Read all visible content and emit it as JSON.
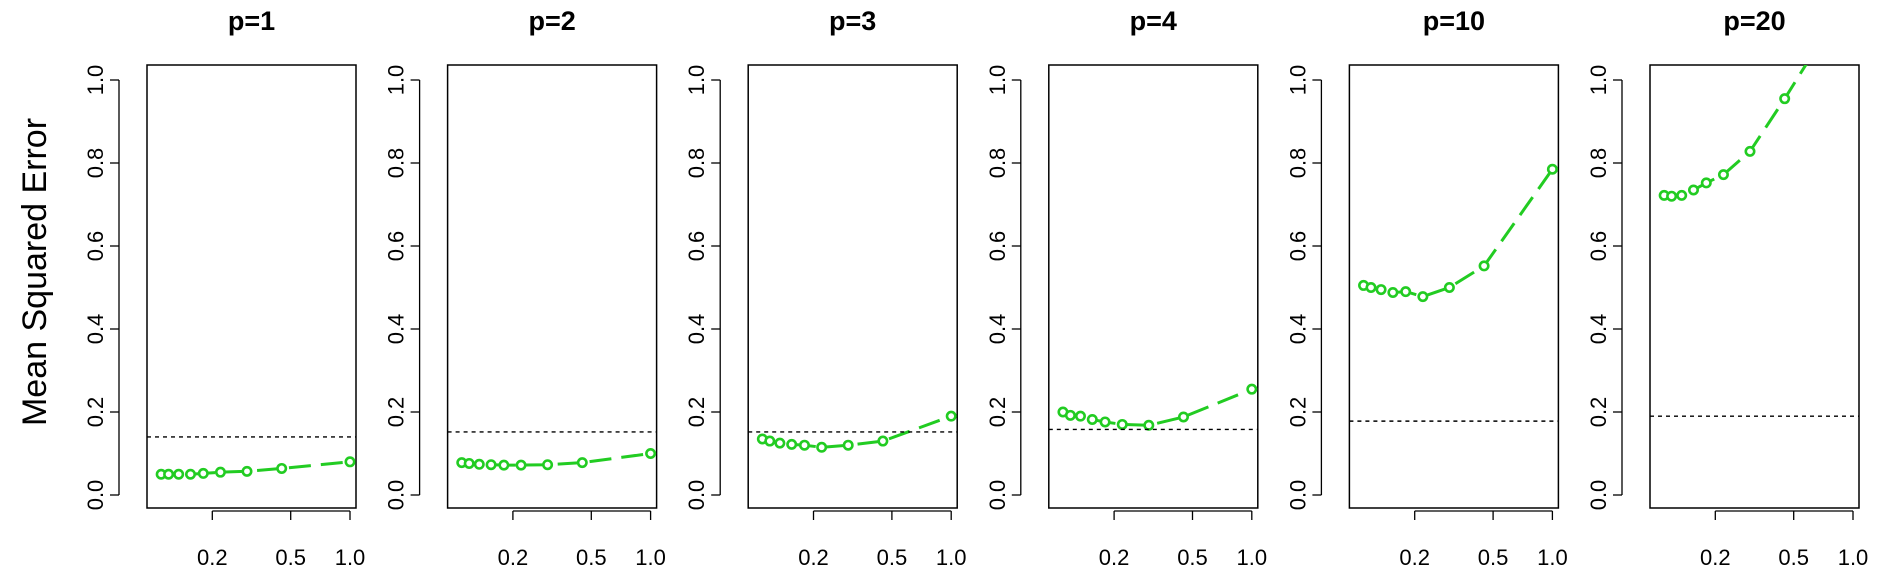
{
  "figure": {
    "ylabel": "Mean Squared Error"
  },
  "chart_data": [
    {
      "type": "line",
      "title": "p=1",
      "xscale": "log",
      "xlim": [
        0.1,
        1.0
      ],
      "ylim": [
        0.0,
        1.0
      ],
      "xticks": [
        0.2,
        0.5,
        1.0
      ],
      "xtick_labels": [
        "0.2",
        "0.5",
        "1.0"
      ],
      "yticks": [
        0.0,
        0.2,
        0.4,
        0.6,
        0.8,
        1.0
      ],
      "ytick_labels": [
        "0.0",
        "0.2",
        "0.4",
        "0.6",
        "0.8",
        "1.0"
      ],
      "series": [
        {
          "x": [
            0.11,
            0.12,
            0.135,
            0.155,
            0.18,
            0.22,
            0.3,
            0.45,
            1.0
          ],
          "y": [
            0.05,
            0.05,
            0.05,
            0.05,
            0.052,
            0.055,
            0.057,
            0.064,
            0.08
          ],
          "color": "#22cc22",
          "style": "points+dashed"
        },
        {
          "reference_y": 0.14,
          "color": "#000000",
          "style": "dotted"
        }
      ]
    },
    {
      "type": "line",
      "title": "p=2",
      "xscale": "log",
      "xlim": [
        0.1,
        1.0
      ],
      "ylim": [
        0.0,
        1.0
      ],
      "xticks": [
        0.2,
        0.5,
        1.0
      ],
      "xtick_labels": [
        "0.2",
        "0.5",
        "1.0"
      ],
      "yticks": [
        0.0,
        0.2,
        0.4,
        0.6,
        0.8,
        1.0
      ],
      "ytick_labels": [
        "0.0",
        "0.2",
        "0.4",
        "0.6",
        "0.8",
        "1.0"
      ],
      "series": [
        {
          "x": [
            0.11,
            0.12,
            0.135,
            0.155,
            0.18,
            0.22,
            0.3,
            0.45,
            1.0
          ],
          "y": [
            0.078,
            0.076,
            0.074,
            0.073,
            0.072,
            0.072,
            0.073,
            0.078,
            0.1
          ],
          "color": "#22cc22",
          "style": "points+dashed"
        },
        {
          "reference_y": 0.152,
          "color": "#000000",
          "style": "dotted"
        }
      ]
    },
    {
      "type": "line",
      "title": "p=3",
      "xscale": "log",
      "xlim": [
        0.1,
        1.0
      ],
      "ylim": [
        0.0,
        1.0
      ],
      "xticks": [
        0.2,
        0.5,
        1.0
      ],
      "xtick_labels": [
        "0.2",
        "0.5",
        "1.0"
      ],
      "yticks": [
        0.0,
        0.2,
        0.4,
        0.6,
        0.8,
        1.0
      ],
      "ytick_labels": [
        "0.0",
        "0.2",
        "0.4",
        "0.6",
        "0.8",
        "1.0"
      ],
      "series": [
        {
          "x": [
            0.11,
            0.12,
            0.135,
            0.155,
            0.18,
            0.22,
            0.3,
            0.45,
            1.0
          ],
          "y": [
            0.135,
            0.13,
            0.125,
            0.122,
            0.12,
            0.115,
            0.12,
            0.13,
            0.19
          ],
          "color": "#22cc22",
          "style": "points+dashed"
        },
        {
          "reference_y": 0.152,
          "color": "#000000",
          "style": "dotted"
        }
      ]
    },
    {
      "type": "line",
      "title": "p=4",
      "xscale": "log",
      "xlim": [
        0.1,
        1.0
      ],
      "ylim": [
        0.0,
        1.0
      ],
      "xticks": [
        0.2,
        0.5,
        1.0
      ],
      "xtick_labels": [
        "0.2",
        "0.5",
        "1.0"
      ],
      "yticks": [
        0.0,
        0.2,
        0.4,
        0.6,
        0.8,
        1.0
      ],
      "ytick_labels": [
        "0.0",
        "0.2",
        "0.4",
        "0.6",
        "0.8",
        "1.0"
      ],
      "series": [
        {
          "x": [
            0.11,
            0.12,
            0.135,
            0.155,
            0.18,
            0.22,
            0.3,
            0.45,
            1.0
          ],
          "y": [
            0.2,
            0.192,
            0.19,
            0.182,
            0.176,
            0.17,
            0.168,
            0.188,
            0.255
          ],
          "color": "#22cc22",
          "style": "points+dashed"
        },
        {
          "reference_y": 0.158,
          "color": "#000000",
          "style": "dotted"
        }
      ]
    },
    {
      "type": "line",
      "title": "p=10",
      "xscale": "log",
      "xlim": [
        0.1,
        1.0
      ],
      "ylim": [
        0.0,
        1.0
      ],
      "xticks": [
        0.2,
        0.5,
        1.0
      ],
      "xtick_labels": [
        "0.2",
        "0.5",
        "1.0"
      ],
      "yticks": [
        0.0,
        0.2,
        0.4,
        0.6,
        0.8,
        1.0
      ],
      "ytick_labels": [
        "0.0",
        "0.2",
        "0.4",
        "0.6",
        "0.8",
        "1.0"
      ],
      "series": [
        {
          "x": [
            0.11,
            0.12,
            0.135,
            0.155,
            0.18,
            0.22,
            0.3,
            0.45,
            1.0
          ],
          "y": [
            0.505,
            0.5,
            0.495,
            0.488,
            0.49,
            0.478,
            0.5,
            0.552,
            0.785
          ],
          "color": "#22cc22",
          "style": "points+dashed"
        },
        {
          "reference_y": 0.178,
          "color": "#000000",
          "style": "dotted"
        }
      ]
    },
    {
      "type": "line",
      "title": "p=20",
      "xscale": "log",
      "xlim": [
        0.1,
        1.0
      ],
      "ylim": [
        0.0,
        1.0
      ],
      "xticks": [
        0.2,
        0.5,
        1.0
      ],
      "xtick_labels": [
        "0.2",
        "0.5",
        "1.0"
      ],
      "yticks": [
        0.0,
        0.2,
        0.4,
        0.6,
        0.8,
        1.0
      ],
      "ytick_labels": [
        "0.0",
        "0.2",
        "0.4",
        "0.6",
        "0.8",
        "1.0"
      ],
      "series": [
        {
          "x": [
            0.11,
            0.12,
            0.135,
            0.155,
            0.18,
            0.22,
            0.3,
            0.45,
            0.6
          ],
          "y": [
            0.722,
            0.72,
            0.722,
            0.735,
            0.752,
            0.772,
            0.828,
            0.955,
            1.05
          ],
          "color": "#22cc22",
          "style": "points+dashed"
        },
        {
          "reference_y": 0.19,
          "color": "#000000",
          "style": "dotted"
        }
      ]
    }
  ]
}
